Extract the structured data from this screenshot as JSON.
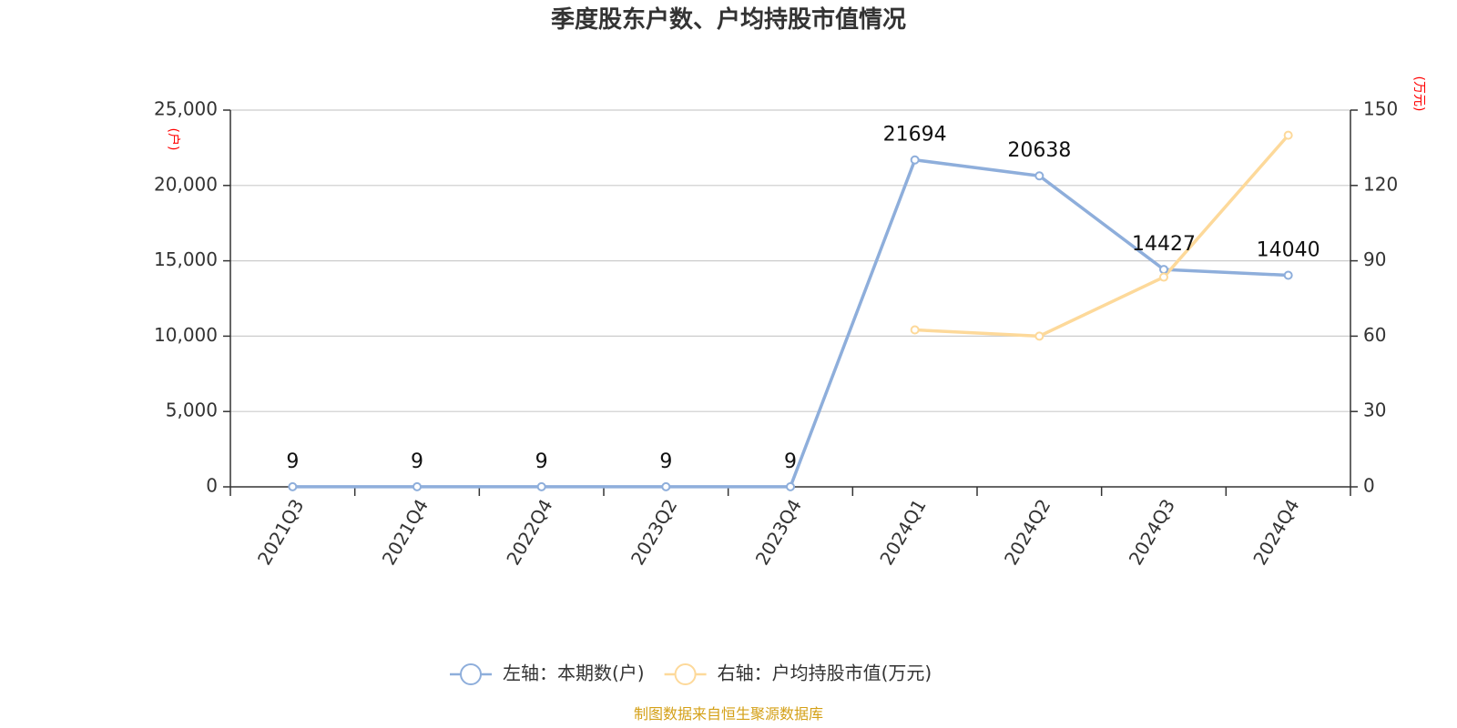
{
  "chart_data": {
    "type": "line",
    "title": "季度股东户数、户均持股市值情况",
    "categories": [
      "2021Q3",
      "2021Q4",
      "2022Q4",
      "2023Q2",
      "2023Q4",
      "2024Q1",
      "2024Q2",
      "2024Q3",
      "2024Q4"
    ],
    "left_axis": {
      "unit": "(户)",
      "ylim": [
        0,
        25000
      ],
      "ticks": [
        "0",
        "5,000",
        "10,000",
        "15,000",
        "20,000",
        "25,000"
      ],
      "tick_values": [
        0,
        5000,
        10000,
        15000,
        20000,
        25000
      ]
    },
    "right_axis": {
      "unit": "(万元)",
      "ylim": [
        0,
        150
      ],
      "ticks": [
        "0",
        "30",
        "60",
        "90",
        "120",
        "150"
      ],
      "tick_values": [
        0,
        30,
        60,
        90,
        120,
        150
      ]
    },
    "series": [
      {
        "name": "左轴：本期数(户)",
        "axis": "left",
        "color": "#8eaedb",
        "values": [
          9,
          9,
          9,
          9,
          9,
          21694,
          20638,
          14427,
          14040
        ],
        "labels": [
          "9",
          "9",
          "9",
          "9",
          "9",
          "21694",
          "20638",
          "14427",
          "14040"
        ]
      },
      {
        "name": "右轴：户均持股市值(万元)",
        "axis": "right",
        "color": "#fdd99a",
        "values": [
          null,
          null,
          null,
          null,
          null,
          62.5,
          60,
          83.5,
          140
        ],
        "labels": null
      }
    ],
    "grid": true,
    "legend_position": "bottom-center",
    "colors": {
      "unit_label": "#ff0000",
      "source": "#d4a017",
      "axis": "#333333",
      "grid": "#cccccc"
    }
  },
  "footer": {
    "source": "制图数据来自恒生聚源数据库"
  }
}
